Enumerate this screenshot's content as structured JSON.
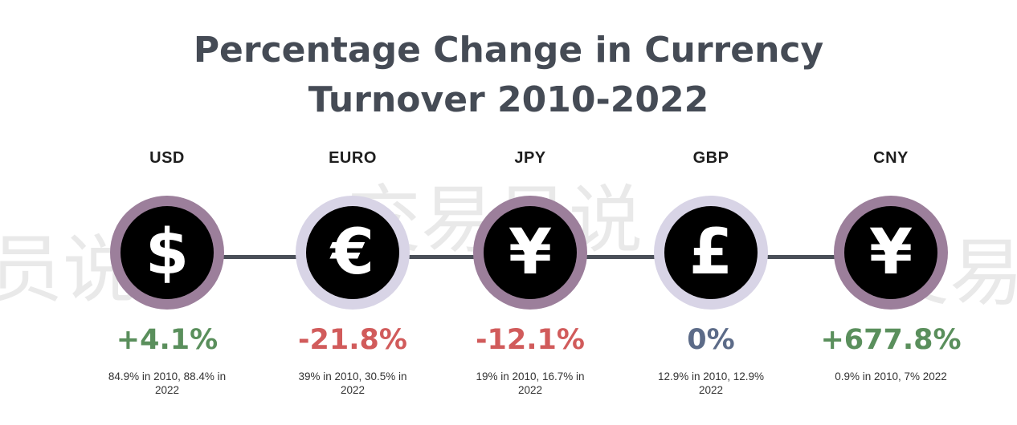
{
  "title": {
    "line1": "Percentage Change in Currency",
    "line2": "Turnover 2010-2022"
  },
  "watermarks": [
    "员说",
    "交易员说",
    "交易"
  ],
  "colors": {
    "positive": "#5a8f5c",
    "negative": "#d15b5b",
    "neutral": "#5c6b88",
    "ring_purple": "#9c7f9b",
    "ring_lilac": "#d8d4e6",
    "connector": "#4a4f58"
  },
  "currencies": [
    {
      "code": "USD",
      "symbol": "$",
      "icon": "dollar-icon",
      "change": "+4.1%",
      "detail": "84.9% in 2010, 88.4% in 2022"
    },
    {
      "code": "EURO",
      "symbol": "€",
      "icon": "euro-icon",
      "change": "-21.8%",
      "detail": "39% in 2010, 30.5% in 2022"
    },
    {
      "code": "JPY",
      "symbol": "¥",
      "icon": "yen-icon",
      "change": "-12.1%",
      "detail": "19% in 2010, 16.7% in 2022"
    },
    {
      "code": "GBP",
      "symbol": "£",
      "icon": "pound-icon",
      "change": "0%",
      "detail": "12.9% in 2010, 12.9% 2022"
    },
    {
      "code": "CNY",
      "symbol": "¥",
      "icon": "yuan-icon",
      "change": "+677.8%",
      "detail": "0.9% in 2010, 7% 2022"
    }
  ]
}
